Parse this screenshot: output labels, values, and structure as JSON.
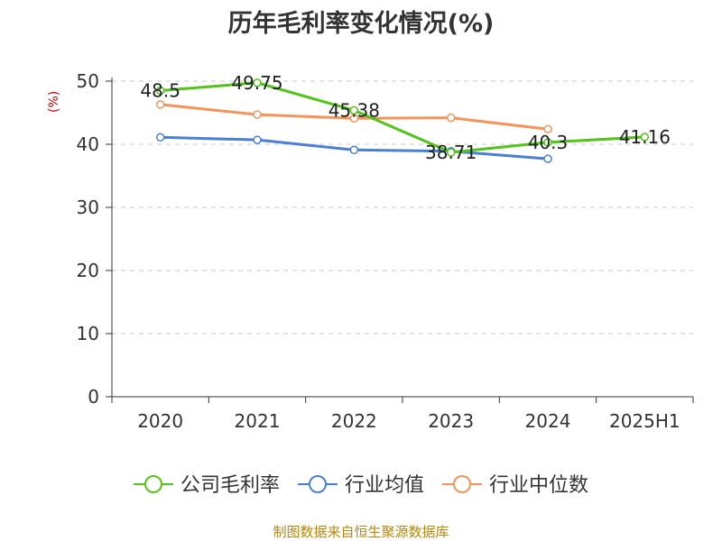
{
  "chart_data": {
    "type": "line",
    "title": "历年毛利率变化情况(%)",
    "ylabel": "(%)",
    "categories": [
      "2020",
      "2021",
      "2022",
      "2023",
      "2024",
      "2025H1"
    ],
    "ylim": [
      0,
      50
    ],
    "yticks": [
      0,
      10,
      20,
      30,
      40,
      50
    ],
    "grid": true,
    "legend_position": "bottom",
    "series": [
      {
        "name": "公司毛利率",
        "color": "#52c41a",
        "values": [
          48.5,
          49.75,
          45.38,
          38.71,
          40.3,
          41.16
        ],
        "labels": [
          "48.5",
          "49.75",
          "45.38",
          "38.71",
          "40.3",
          "41.16"
        ]
      },
      {
        "name": "行业均值",
        "color": "#4a7fd6",
        "values": [
          41.1,
          40.7,
          39.1,
          38.9,
          37.7,
          null
        ]
      },
      {
        "name": "行业中位数",
        "color": "#f5935b",
        "values": [
          46.3,
          44.7,
          44.1,
          44.2,
          42.4,
          null
        ]
      }
    ]
  },
  "source_note": "制图数据来自恒生聚源数据库"
}
